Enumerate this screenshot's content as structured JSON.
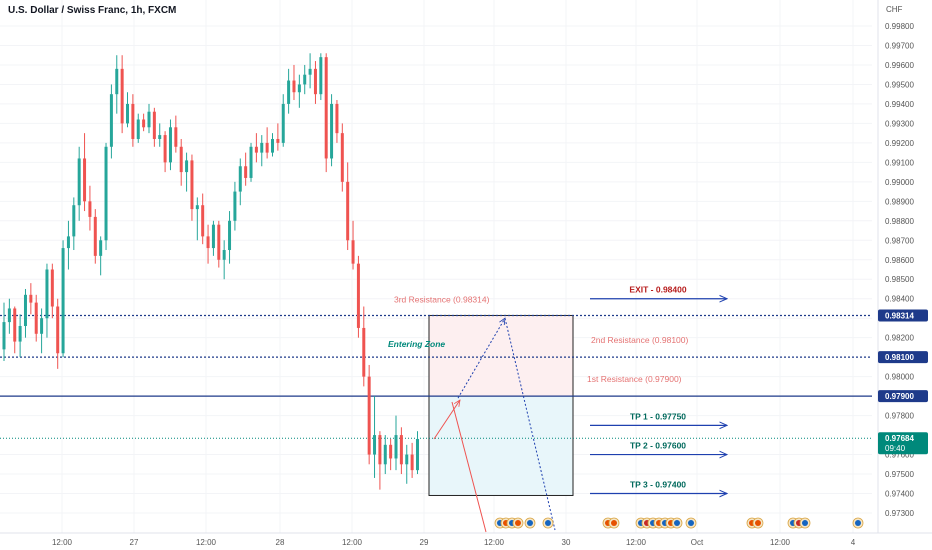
{
  "chart_data": {
    "type": "candlestick",
    "title": "U.S. Dollar / Swiss Franc, 1h, FXCM",
    "currency": "CHF",
    "ylim": [
      0.9722,
      0.999
    ],
    "y_ticks": [
      "0.99800",
      "0.99700",
      "0.99600",
      "0.99500",
      "0.99400",
      "0.99300",
      "0.99200",
      "0.99100",
      "0.99000",
      "0.98900",
      "0.98800",
      "0.98700",
      "0.98600",
      "0.98500",
      "0.98400",
      "0.98300",
      "0.98200",
      "0.98000",
      "0.97800",
      "0.97600",
      "0.97500",
      "0.97400",
      "0.97300"
    ],
    "x_ticks": [
      "12:00",
      "27",
      "12:00",
      "28",
      "12:00",
      "29",
      "12:00",
      "30",
      "12:00",
      "Oct",
      "12:00",
      "4"
    ],
    "candles": [
      [
        0.9814,
        0.9838,
        0.9808,
        0.9828
      ],
      [
        0.9828,
        0.984,
        0.9822,
        0.9835
      ],
      [
        0.9835,
        0.9836,
        0.9812,
        0.9818
      ],
      [
        0.9818,
        0.9832,
        0.981,
        0.9826
      ],
      [
        0.9826,
        0.9845,
        0.982,
        0.9842
      ],
      [
        0.9842,
        0.9848,
        0.9832,
        0.9838
      ],
      [
        0.9838,
        0.9842,
        0.9818,
        0.9822
      ],
      [
        0.9822,
        0.9835,
        0.9812,
        0.983
      ],
      [
        0.983,
        0.9858,
        0.982,
        0.9855
      ],
      [
        0.9855,
        0.9858,
        0.983,
        0.9836
      ],
      [
        0.9836,
        0.984,
        0.9804,
        0.9812
      ],
      [
        0.9812,
        0.987,
        0.981,
        0.9866
      ],
      [
        0.9866,
        0.988,
        0.9855,
        0.9872
      ],
      [
        0.9872,
        0.9892,
        0.9865,
        0.9888
      ],
      [
        0.9888,
        0.9918,
        0.988,
        0.9912
      ],
      [
        0.9912,
        0.9925,
        0.9885,
        0.989
      ],
      [
        0.989,
        0.9898,
        0.9875,
        0.9882
      ],
      [
        0.9882,
        0.9886,
        0.9858,
        0.9862
      ],
      [
        0.9862,
        0.9872,
        0.9852,
        0.987
      ],
      [
        0.987,
        0.992,
        0.9865,
        0.9918
      ],
      [
        0.9918,
        0.995,
        0.9912,
        0.9945
      ],
      [
        0.9945,
        0.9965,
        0.9935,
        0.9958
      ],
      [
        0.9958,
        0.9965,
        0.9925,
        0.993
      ],
      [
        0.993,
        0.9946,
        0.9928,
        0.994
      ],
      [
        0.994,
        0.9945,
        0.9918,
        0.9922
      ],
      [
        0.9922,
        0.9935,
        0.992,
        0.9932
      ],
      [
        0.9932,
        0.9935,
        0.9926,
        0.9928
      ],
      [
        0.9928,
        0.994,
        0.9925,
        0.9936
      ],
      [
        0.9936,
        0.9938,
        0.9918,
        0.9922
      ],
      [
        0.9922,
        0.993,
        0.9918,
        0.9924
      ],
      [
        0.9924,
        0.9926,
        0.9905,
        0.991
      ],
      [
        0.991,
        0.9932,
        0.9906,
        0.9928
      ],
      [
        0.9928,
        0.9934,
        0.9915,
        0.9918
      ],
      [
        0.9918,
        0.9922,
        0.9898,
        0.9905
      ],
      [
        0.9905,
        0.9915,
        0.9895,
        0.9911
      ],
      [
        0.9911,
        0.9914,
        0.988,
        0.9886
      ],
      [
        0.9886,
        0.9892,
        0.987,
        0.9888
      ],
      [
        0.9888,
        0.9894,
        0.9868,
        0.9872
      ],
      [
        0.9872,
        0.9878,
        0.9858,
        0.9866
      ],
      [
        0.9866,
        0.988,
        0.9862,
        0.9878
      ],
      [
        0.9878,
        0.988,
        0.9856,
        0.986
      ],
      [
        0.986,
        0.987,
        0.985,
        0.9865
      ],
      [
        0.9865,
        0.9885,
        0.9858,
        0.988
      ],
      [
        0.988,
        0.99,
        0.9875,
        0.9895
      ],
      [
        0.9895,
        0.9912,
        0.9888,
        0.9908
      ],
      [
        0.9908,
        0.9915,
        0.9898,
        0.9902
      ],
      [
        0.9902,
        0.992,
        0.99,
        0.9918
      ],
      [
        0.9918,
        0.9925,
        0.991,
        0.9915
      ],
      [
        0.9915,
        0.9924,
        0.9908,
        0.992
      ],
      [
        0.992,
        0.9928,
        0.9912,
        0.9915
      ],
      [
        0.9915,
        0.9925,
        0.9913,
        0.9922
      ],
      [
        0.9922,
        0.993,
        0.9916,
        0.992
      ],
      [
        0.992,
        0.9945,
        0.9918,
        0.994
      ],
      [
        0.994,
        0.9958,
        0.9935,
        0.9952
      ],
      [
        0.9952,
        0.996,
        0.9942,
        0.9946
      ],
      [
        0.9946,
        0.9955,
        0.9938,
        0.995
      ],
      [
        0.995,
        0.996,
        0.9945,
        0.9955
      ],
      [
        0.9955,
        0.9966,
        0.9948,
        0.9958
      ],
      [
        0.9958,
        0.9962,
        0.994,
        0.9945
      ],
      [
        0.9945,
        0.9966,
        0.9942,
        0.9964
      ],
      [
        0.9964,
        0.9966,
        0.9905,
        0.9912
      ],
      [
        0.9912,
        0.9945,
        0.9908,
        0.994
      ],
      [
        0.994,
        0.9942,
        0.992,
        0.9925
      ],
      [
        0.9925,
        0.993,
        0.9895,
        0.99
      ],
      [
        0.99,
        0.991,
        0.9865,
        0.987
      ],
      [
        0.987,
        0.988,
        0.9855,
        0.9858
      ],
      [
        0.9858,
        0.9862,
        0.982,
        0.9825
      ],
      [
        0.9825,
        0.9836,
        0.9795,
        0.98
      ],
      [
        0.98,
        0.9806,
        0.9755,
        0.976
      ],
      [
        0.976,
        0.979,
        0.9748,
        0.977
      ],
      [
        0.977,
        0.9772,
        0.9742,
        0.9755
      ],
      [
        0.9755,
        0.977,
        0.975,
        0.9765
      ],
      [
        0.9765,
        0.9768,
        0.9752,
        0.9758
      ],
      [
        0.9758,
        0.978,
        0.9752,
        0.977
      ],
      [
        0.977,
        0.9774,
        0.975,
        0.9755
      ],
      [
        0.9755,
        0.9765,
        0.9745,
        0.976
      ],
      [
        0.976,
        0.9766,
        0.9748,
        0.9752
      ],
      [
        0.9752,
        0.9772,
        0.975,
        0.9768
      ]
    ],
    "levels": [
      {
        "label": "0.98314",
        "value": 0.98314,
        "style": "dotted"
      },
      {
        "label": "0.98100",
        "value": 0.981,
        "style": "dotted"
      },
      {
        "label": "0.97900",
        "value": 0.979,
        "style": "solid"
      },
      {
        "label": "0.97684",
        "value": 0.97684,
        "style": "current"
      }
    ],
    "current_countdown": "09:40",
    "annotations": {
      "r3": "3rd Resistance (0.98314)",
      "r2": "2nd Resistance (0.98100)",
      "r1": "1st Resistance (0.97900)",
      "entry": "Entering Zone",
      "exit": "EXIT - 0.98400",
      "tp1": "TP 1 - 0.97750",
      "tp2": "TP 2 - 0.97600",
      "tp3": "TP 3 - 0.97400"
    },
    "colors": {
      "up": "#26a69a",
      "down": "#ef5350",
      "level": "#1e3a8a",
      "exit_text": "#b71c1c",
      "tp_text": "#00695c",
      "arrow": "#1e40af",
      "resistance_text": "#e57373",
      "entry_text": "#00897b",
      "current": "#00897b",
      "profit_zone": "#fdeff0",
      "loss_zone": "#e8f6fa"
    }
  }
}
